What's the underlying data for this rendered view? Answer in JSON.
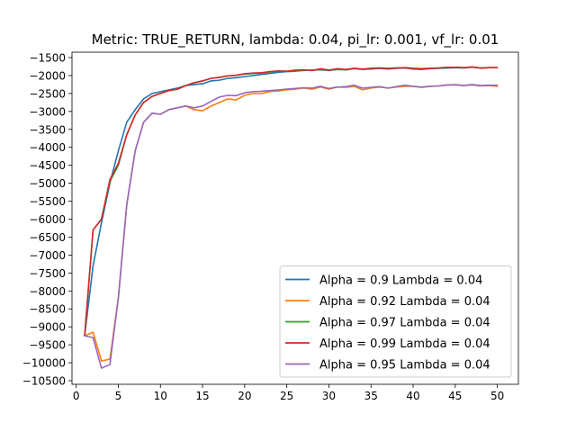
{
  "chart_data": {
    "type": "line",
    "title": "Metric: TRUE_RETURN, lambda: 0.04, pi_lr: 0.001, vf_lr: 0.01",
    "xlabel": "",
    "ylabel": "",
    "xlim": [
      -0.5,
      52.5
    ],
    "ylim": [
      -10600,
      -1350
    ],
    "x_ticks": [
      0,
      5,
      10,
      15,
      20,
      25,
      30,
      35,
      40,
      45,
      50
    ],
    "y_ticks": [
      -10500,
      -10000,
      -9500,
      -9000,
      -8500,
      -8000,
      -7500,
      -7000,
      -6500,
      -6000,
      -5500,
      -5000,
      -4500,
      -4000,
      -3500,
      -3000,
      -2500,
      -2000,
      -1500
    ],
    "grid": false,
    "legend_position": "lower-right",
    "x": [
      1,
      2,
      3,
      4,
      5,
      6,
      7,
      8,
      9,
      10,
      11,
      12,
      13,
      14,
      15,
      16,
      17,
      18,
      19,
      20,
      21,
      22,
      23,
      24,
      25,
      26,
      27,
      28,
      29,
      30,
      31,
      32,
      33,
      34,
      35,
      36,
      37,
      38,
      39,
      40,
      41,
      42,
      43,
      44,
      45,
      46,
      47,
      48,
      49,
      50
    ],
    "series": [
      {
        "name": "Alpha = 0.9  Lambda = 0.04",
        "color": "#1f77b4",
        "values": [
          -9250,
          -7300,
          -6100,
          -5000,
          -4100,
          -3300,
          -2950,
          -2650,
          -2500,
          -2450,
          -2400,
          -2350,
          -2280,
          -2250,
          -2230,
          -2150,
          -2130,
          -2080,
          -2060,
          -2030,
          -2000,
          -1970,
          -1940,
          -1910,
          -1890,
          -1880,
          -1860,
          -1850,
          -1840,
          -1860,
          -1830,
          -1840,
          -1810,
          -1830,
          -1820,
          -1800,
          -1820,
          -1800,
          -1790,
          -1820,
          -1830,
          -1810,
          -1800,
          -1790,
          -1780,
          -1790,
          -1770,
          -1790,
          -1780,
          -1780
        ]
      },
      {
        "name": "Alpha = 0.92  Lambda = 0.04",
        "color": "#ff7f0e",
        "values": [
          -9250,
          -9150,
          -9950,
          -9900,
          -8200,
          -5600,
          -4100,
          -3300,
          -3050,
          -3080,
          -2950,
          -2900,
          -2850,
          -2950,
          -2980,
          -2850,
          -2750,
          -2650,
          -2680,
          -2550,
          -2500,
          -2500,
          -2450,
          -2430,
          -2400,
          -2380,
          -2350,
          -2380,
          -2320,
          -2380,
          -2320,
          -2330,
          -2300,
          -2400,
          -2350,
          -2320,
          -2350,
          -2320,
          -2300,
          -2300,
          -2330,
          -2300,
          -2290,
          -2270,
          -2250,
          -2280,
          -2260,
          -2290,
          -2280,
          -2300
        ]
      },
      {
        "name": "Alpha = 0.97  Lambda = 0.04",
        "color": "#2ca02c",
        "values": [
          -9250,
          -6300,
          -6000,
          -4950,
          -4500,
          -3650,
          -3100,
          -2750,
          -2580,
          -2500,
          -2420,
          -2380,
          -2280,
          -2200,
          -2150,
          -2080,
          -2050,
          -2010,
          -1990,
          -1960,
          -1940,
          -1930,
          -1900,
          -1880,
          -1880,
          -1860,
          -1850,
          -1860,
          -1820,
          -1850,
          -1820,
          -1840,
          -1800,
          -1820,
          -1800,
          -1790,
          -1800,
          -1790,
          -1780,
          -1800,
          -1810,
          -1800,
          -1790,
          -1770,
          -1770,
          -1780,
          -1760,
          -1790,
          -1780,
          -1780
        ]
      },
      {
        "name": "Alpha = 0.99  Lambda = 0.04",
        "color": "#d62728",
        "values": [
          -9250,
          -6300,
          -6000,
          -4900,
          -4450,
          -3650,
          -3100,
          -2750,
          -2580,
          -2500,
          -2420,
          -2380,
          -2280,
          -2200,
          -2150,
          -2080,
          -2050,
          -2010,
          -1990,
          -1950,
          -1930,
          -1920,
          -1890,
          -1870,
          -1880,
          -1850,
          -1840,
          -1860,
          -1810,
          -1850,
          -1810,
          -1830,
          -1800,
          -1820,
          -1800,
          -1790,
          -1800,
          -1790,
          -1780,
          -1800,
          -1810,
          -1800,
          -1790,
          -1770,
          -1770,
          -1780,
          -1760,
          -1790,
          -1780,
          -1780
        ]
      },
      {
        "name": "Alpha = 0.95  Lambda = 0.04",
        "color": "#9467bd",
        "values": [
          -9250,
          -9300,
          -10150,
          -10050,
          -8200,
          -5600,
          -4100,
          -3300,
          -3050,
          -3080,
          -2950,
          -2900,
          -2850,
          -2900,
          -2850,
          -2720,
          -2600,
          -2550,
          -2560,
          -2480,
          -2450,
          -2440,
          -2420,
          -2400,
          -2380,
          -2360,
          -2340,
          -2350,
          -2300,
          -2360,
          -2320,
          -2310,
          -2270,
          -2350,
          -2330,
          -2310,
          -2350,
          -2310,
          -2270,
          -2300,
          -2320,
          -2300,
          -2290,
          -2260,
          -2260,
          -2280,
          -2250,
          -2280,
          -2270,
          -2270
        ]
      }
    ]
  }
}
